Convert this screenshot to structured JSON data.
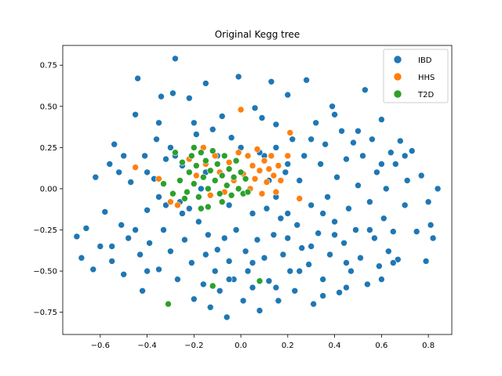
{
  "chart_data": {
    "type": "scatter",
    "title": "Original Kegg tree",
    "xlabel": "",
    "ylabel": "",
    "xlim": [
      -0.76,
      0.9
    ],
    "ylim": [
      -0.885,
      0.87
    ],
    "xticks": [
      -0.6,
      -0.4,
      -0.2,
      0.0,
      0.2,
      0.4,
      0.6,
      0.8
    ],
    "yticks": [
      -0.75,
      -0.5,
      -0.25,
      0.0,
      0.25,
      0.5,
      0.75
    ],
    "xtick_labels": [
      "−0.6",
      "−0.4",
      "−0.2",
      "0.0",
      "0.2",
      "0.4",
      "0.6",
      "0.8"
    ],
    "ytick_labels": [
      "−0.75",
      "−0.50",
      "−0.25",
      "0.00",
      "0.25",
      "0.50",
      "0.75"
    ],
    "grid": false,
    "legend_position": "top-right",
    "series": [
      {
        "name": "IBD",
        "color": "#1f77b4",
        "points": [
          [
            -0.7,
            -0.29
          ],
          [
            -0.68,
            -0.42
          ],
          [
            -0.66,
            -0.24
          ],
          [
            -0.63,
            -0.49
          ],
          [
            -0.62,
            0.07
          ],
          [
            -0.6,
            -0.35
          ],
          [
            -0.58,
            -0.14
          ],
          [
            -0.56,
            0.15
          ],
          [
            -0.55,
            -0.44
          ],
          [
            -0.54,
            0.27
          ],
          [
            -0.52,
            0.1
          ],
          [
            -0.51,
            -0.22
          ],
          [
            -0.5,
            -0.52
          ],
          [
            -0.48,
            -0.3
          ],
          [
            -0.47,
            0.04
          ],
          [
            -0.45,
            0.45
          ],
          [
            -0.44,
            0.67
          ],
          [
            -0.43,
            -0.4
          ],
          [
            -0.42,
            -0.62
          ],
          [
            -0.41,
            0.2
          ],
          [
            -0.4,
            -0.13
          ],
          [
            -0.39,
            -0.33
          ],
          [
            -0.37,
            0.06
          ],
          [
            -0.36,
            0.3
          ],
          [
            -0.35,
            -0.49
          ],
          [
            -0.34,
            0.56
          ],
          [
            -0.33,
            -0.25
          ],
          [
            -0.32,
            0.18
          ],
          [
            -0.3,
            -0.38
          ],
          [
            -0.29,
            0.58
          ],
          [
            -0.28,
            0.79
          ],
          [
            -0.27,
            -0.55
          ],
          [
            -0.26,
            -0.08
          ],
          [
            -0.25,
            0.14
          ],
          [
            -0.24,
            -0.31
          ],
          [
            -0.22,
            0.55
          ],
          [
            -0.21,
            -0.45
          ],
          [
            -0.2,
            -0.67
          ],
          [
            -0.19,
            0.33
          ],
          [
            -0.18,
            -0.2
          ],
          [
            -0.17,
            0.0
          ],
          [
            -0.16,
            -0.58
          ],
          [
            -0.15,
            0.64
          ],
          [
            -0.14,
            -0.28
          ],
          [
            -0.13,
            -0.72
          ],
          [
            -0.12,
            0.36
          ],
          [
            -0.11,
            -0.5
          ],
          [
            -0.1,
            -0.37
          ],
          [
            -0.09,
            -0.62
          ],
          [
            -0.08,
            0.44
          ],
          [
            -0.07,
            -0.3
          ],
          [
            -0.06,
            -0.78
          ],
          [
            -0.05,
            -0.44
          ],
          [
            -0.04,
            0.31
          ],
          [
            -0.03,
            -0.55
          ],
          [
            -0.02,
            -0.25
          ],
          [
            -0.01,
            0.68
          ],
          [
            0.01,
            -0.68
          ],
          [
            0.02,
            -0.38
          ],
          [
            0.03,
            -0.5
          ],
          [
            0.05,
            -0.6
          ],
          [
            0.06,
            0.49
          ],
          [
            0.07,
            -0.31
          ],
          [
            0.08,
            -0.74
          ],
          [
            0.09,
            0.43
          ],
          [
            0.1,
            -0.42
          ],
          [
            0.11,
            -0.12
          ],
          [
            0.12,
            -0.56
          ],
          [
            0.13,
            0.65
          ],
          [
            0.14,
            -0.28
          ],
          [
            0.15,
            0.39
          ],
          [
            0.16,
            -0.68
          ],
          [
            0.17,
            -0.18
          ],
          [
            0.18,
            -0.4
          ],
          [
            0.19,
            0.1
          ],
          [
            0.2,
            0.57
          ],
          [
            0.21,
            -0.5
          ],
          [
            0.22,
            0.3
          ],
          [
            0.23,
            -0.62
          ],
          [
            0.24,
            -0.22
          ],
          [
            0.25,
            0.05
          ],
          [
            0.26,
            -0.36
          ],
          [
            0.27,
            0.2
          ],
          [
            0.28,
            0.66
          ],
          [
            0.29,
            -0.46
          ],
          [
            0.3,
            -0.1
          ],
          [
            0.31,
            -0.7
          ],
          [
            0.32,
            0.4
          ],
          [
            0.33,
            -0.27
          ],
          [
            0.34,
            0.15
          ],
          [
            0.35,
            -0.55
          ],
          [
            0.36,
            0.27
          ],
          [
            0.37,
            -0.05
          ],
          [
            0.38,
            -0.4
          ],
          [
            0.39,
            0.5
          ],
          [
            0.4,
            -0.2
          ],
          [
            0.41,
            0.07
          ],
          [
            0.42,
            -0.63
          ],
          [
            0.43,
            0.35
          ],
          [
            0.44,
            -0.33
          ],
          [
            0.45,
            0.18
          ],
          [
            0.46,
            -0.12
          ],
          [
            0.47,
            -0.5
          ],
          [
            0.48,
            0.28
          ],
          [
            0.49,
            -0.25
          ],
          [
            0.5,
            0.02
          ],
          [
            0.51,
            -0.42
          ],
          [
            0.52,
            0.2
          ],
          [
            0.53,
            0.6
          ],
          [
            0.54,
            -0.58
          ],
          [
            0.55,
            -0.08
          ],
          [
            0.56,
            0.3
          ],
          [
            0.57,
            -0.3
          ],
          [
            0.58,
            0.1
          ],
          [
            0.59,
            -0.47
          ],
          [
            0.6,
            0.42
          ],
          [
            0.61,
            -0.18
          ],
          [
            0.62,
            0.0
          ],
          [
            0.63,
            -0.38
          ],
          [
            0.64,
            0.22
          ],
          [
            0.65,
            -0.26
          ],
          [
            0.66,
            0.15
          ],
          [
            0.67,
            -0.43
          ],
          [
            0.68,
            0.29
          ],
          [
            0.7,
            -0.1
          ],
          [
            0.71,
            0.05
          ],
          [
            0.73,
            0.23
          ],
          [
            0.75,
            -0.26
          ],
          [
            0.77,
            0.08
          ],
          [
            0.79,
            -0.44
          ],
          [
            0.8,
            -0.08
          ],
          [
            0.81,
            -0.22
          ],
          [
            0.82,
            -0.3
          ],
          [
            0.84,
            0.0
          ],
          [
            -0.4,
            0.1
          ],
          [
            -0.35,
            -0.05
          ],
          [
            -0.3,
            0.25
          ],
          [
            -0.25,
            -0.15
          ],
          [
            -0.2,
            0.4
          ],
          [
            0.1,
            0.2
          ],
          [
            0.15,
            -0.05
          ],
          [
            0.2,
            0.15
          ],
          [
            0.15,
            0.25
          ],
          [
            0.05,
            -0.15
          ],
          [
            -0.05,
            -0.1
          ],
          [
            -0.1,
            0.2
          ],
          [
            0.0,
            0.25
          ],
          [
            -0.15,
            0.1
          ],
          [
            0.12,
            0.05
          ],
          [
            -0.22,
            -0.12
          ],
          [
            -0.28,
            0.2
          ],
          [
            0.08,
            0.22
          ],
          [
            0.2,
            -0.15
          ],
          [
            -0.32,
            -0.1
          ],
          [
            0.3,
            0.3
          ],
          [
            0.35,
            -0.15
          ],
          [
            0.4,
            0.45
          ],
          [
            0.45,
            -0.45
          ],
          [
            0.5,
            0.35
          ],
          [
            -0.45,
            -0.25
          ],
          [
            -0.5,
            0.2
          ],
          [
            -0.55,
            -0.35
          ],
          [
            -0.4,
            -0.5
          ],
          [
            -0.35,
            0.4
          ],
          [
            0.55,
            -0.25
          ],
          [
            0.6,
            0.15
          ],
          [
            0.65,
            -0.45
          ],
          [
            0.7,
            0.2
          ],
          [
            0.6,
            -0.55
          ],
          [
            -0.15,
            -0.4
          ],
          [
            -0.05,
            -0.55
          ],
          [
            0.05,
            -0.45
          ],
          [
            0.15,
            -0.6
          ],
          [
            0.25,
            -0.5
          ],
          [
            0.35,
            -0.65
          ],
          [
            0.45,
            -0.6
          ],
          [
            0.4,
            -0.28
          ],
          [
            0.3,
            -0.35
          ],
          [
            0.2,
            -0.3
          ]
        ]
      },
      {
        "name": "HHS",
        "color": "#ff7f0e",
        "points": [
          [
            -0.45,
            0.13
          ],
          [
            -0.35,
            0.06
          ],
          [
            -0.3,
            -0.08
          ],
          [
            -0.27,
            -0.1
          ],
          [
            -0.22,
            0.18
          ],
          [
            -0.19,
            0.08
          ],
          [
            -0.16,
            0.25
          ],
          [
            -0.13,
            -0.04
          ],
          [
            -0.11,
            0.2
          ],
          [
            -0.09,
            0.1
          ],
          [
            -0.07,
            -0.02
          ],
          [
            -0.05,
            0.16
          ],
          [
            -0.03,
            0.05
          ],
          [
            -0.01,
            0.22
          ],
          [
            0.01,
            0.09
          ],
          [
            0.03,
            0.2
          ],
          [
            0.04,
            0.0
          ],
          [
            0.05,
            0.14
          ],
          [
            0.06,
            0.06
          ],
          [
            0.07,
            0.24
          ],
          [
            0.08,
            0.11
          ],
          [
            0.09,
            -0.03
          ],
          [
            0.1,
            0.17
          ],
          [
            0.11,
            0.04
          ],
          [
            0.12,
            0.12
          ],
          [
            0.13,
            0.2
          ],
          [
            0.14,
            0.08
          ],
          [
            0.16,
            0.14
          ],
          [
            0.17,
            0.05
          ],
          [
            0.2,
            0.2
          ],
          [
            0.21,
            0.34
          ],
          [
            0.25,
            -0.06
          ],
          [
            0.0,
            0.48
          ],
          [
            0.15,
            -0.02
          ],
          [
            -0.15,
            0.15
          ]
        ]
      },
      {
        "name": "T2D",
        "color": "#2ca02c",
        "points": [
          [
            -0.31,
            -0.7
          ],
          [
            -0.12,
            -0.59
          ],
          [
            0.08,
            -0.56
          ],
          [
            -0.14,
            -0.11
          ],
          [
            -0.24,
            -0.06
          ],
          [
            -0.28,
            0.22
          ],
          [
            -0.26,
            0.05
          ],
          [
            -0.25,
            0.16
          ],
          [
            -0.23,
            -0.02
          ],
          [
            -0.22,
            0.1
          ],
          [
            -0.21,
            0.2
          ],
          [
            -0.2,
            0.03
          ],
          [
            -0.19,
            0.14
          ],
          [
            -0.18,
            -0.05
          ],
          [
            -0.17,
            0.22
          ],
          [
            -0.16,
            0.07
          ],
          [
            -0.15,
            0.17
          ],
          [
            -0.14,
            0.0
          ],
          [
            -0.13,
            0.11
          ],
          [
            -0.12,
            0.23
          ],
          [
            -0.11,
            0.05
          ],
          [
            -0.1,
            0.15
          ],
          [
            -0.09,
            -0.03
          ],
          [
            -0.08,
            0.08
          ],
          [
            -0.07,
            0.2
          ],
          [
            -0.06,
            0.02
          ],
          [
            -0.05,
            0.12
          ],
          [
            -0.04,
            -0.04
          ],
          [
            -0.03,
            0.07
          ],
          [
            -0.02,
            0.17
          ],
          [
            -0.01,
            0.0
          ],
          [
            0.0,
            0.1
          ],
          [
            0.01,
            -0.03
          ],
          [
            0.02,
            0.06
          ],
          [
            -0.33,
            0.03
          ],
          [
            -0.29,
            -0.03
          ],
          [
            -0.17,
            -0.12
          ],
          [
            -0.08,
            -0.08
          ],
          [
            0.03,
            -0.02
          ],
          [
            -0.2,
            0.25
          ]
        ]
      }
    ]
  }
}
